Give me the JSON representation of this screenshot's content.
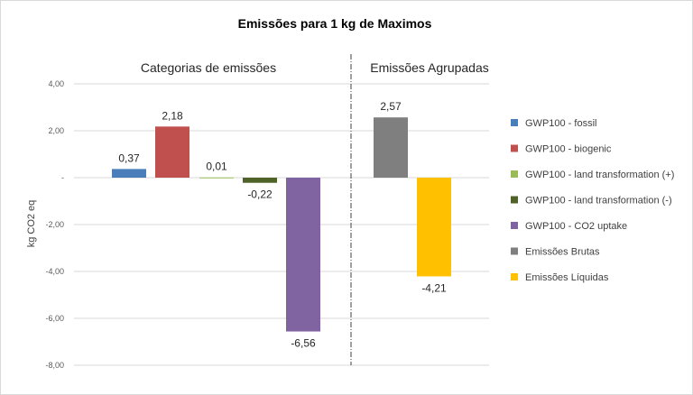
{
  "chart_data": {
    "type": "bar",
    "title": "Emissões para 1 kg de Maximos",
    "ylabel": "kg CO2 eq",
    "ylim": [
      -8,
      4
    ],
    "yticks": [
      4,
      2,
      0,
      -2,
      -4,
      -6,
      -8
    ],
    "ytick_labels": [
      "4,00",
      "2,00",
      "-",
      "-2,00",
      "-4,00",
      "-6,00",
      "-8,00"
    ],
    "grid": true,
    "legend_position": "right",
    "group_labels": [
      "Categorias de emissões",
      "Emissões Agrupadas"
    ],
    "series": [
      {
        "name": "GWP100 - fossil",
        "value": 0.37,
        "label": "0,37",
        "color": "#4a7ebb",
        "group": 0
      },
      {
        "name": "GWP100 - biogenic",
        "value": 2.18,
        "label": "2,18",
        "color": "#c0504d",
        "group": 0
      },
      {
        "name": "GWP100 - land transformation (+)",
        "value": 0.01,
        "label": "0,01",
        "color": "#9bbb59",
        "group": 0
      },
      {
        "name": "GWP100 - land transformation (-)",
        "value": -0.22,
        "label": "-0,22",
        "color": "#4f6228",
        "group": 0
      },
      {
        "name": "GWP100 - CO2 uptake",
        "value": -6.56,
        "label": "-6,56",
        "color": "#8064a2",
        "group": 0
      },
      {
        "name": "Emissões Brutas",
        "value": 2.57,
        "label": "2,57",
        "color": "#7f7f7f",
        "group": 1
      },
      {
        "name": "Emissões Líquidas",
        "value": -4.21,
        "label": "-4,21",
        "color": "#ffc000",
        "group": 1
      }
    ]
  }
}
